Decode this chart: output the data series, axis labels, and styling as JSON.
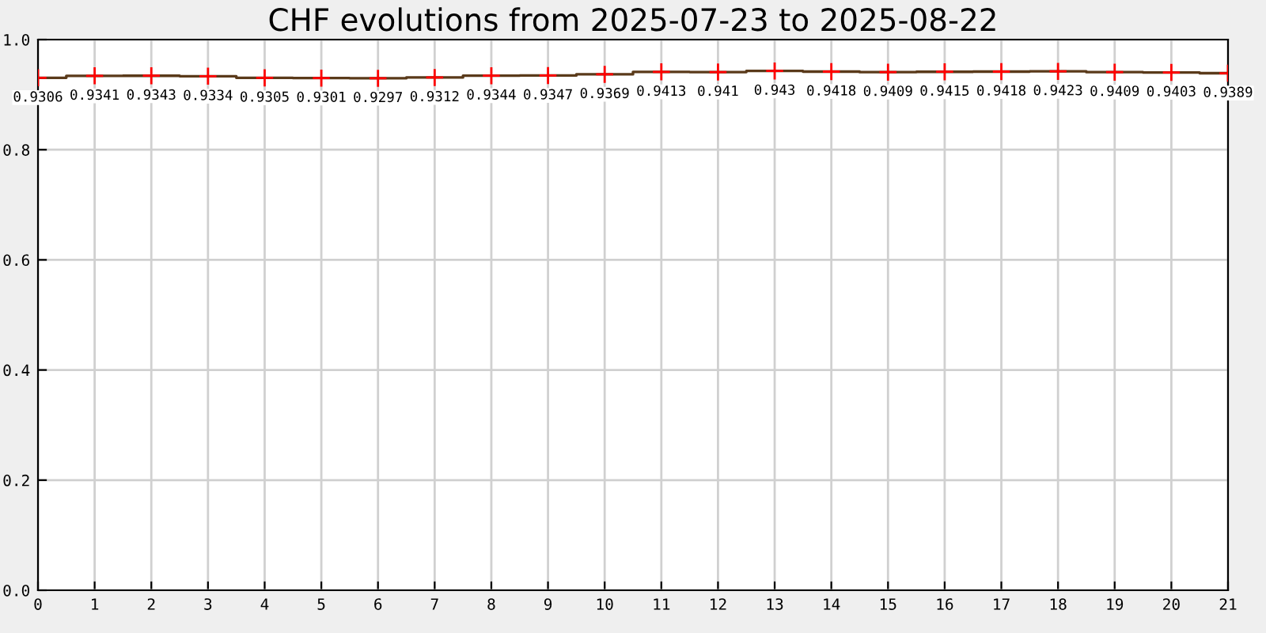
{
  "chart_data": {
    "type": "step",
    "title": "CHF evolutions from 2025-07-23 to 2025-08-22",
    "x": [
      0,
      1,
      2,
      3,
      4,
      5,
      6,
      7,
      8,
      9,
      10,
      11,
      12,
      13,
      14,
      15,
      16,
      17,
      18,
      19,
      20,
      21
    ],
    "series": [
      {
        "color": "#5a3a1a",
        "colors": [
          "#ff0000",
          "#ff0000",
          "#ff0000",
          "#ff0000",
          "#ff0000",
          "#ff0000",
          "#ff0000",
          "#ff0000",
          "#ff0000",
          "#ff0000",
          "#ff0000",
          "#ff0000",
          "#ff0000",
          "#ff0000",
          "#ff0000",
          "#ff0000",
          "#ff0000",
          "#ff0000",
          "#ff0000",
          "#ff0000",
          "#ff0000",
          "#ff0000"
        ],
        "values": [
          0.9306,
          0.9341,
          0.9343,
          0.9334,
          0.9305,
          0.9301,
          0.9297,
          0.9312,
          0.9344,
          0.9347,
          0.9369,
          0.9413,
          0.941,
          0.943,
          0.9418,
          0.9409,
          0.9415,
          0.9418,
          0.9423,
          0.9409,
          0.9403,
          0.9389
        ]
      }
    ],
    "xlim": [
      0,
      21
    ],
    "xticks": [
      0,
      1,
      2,
      3,
      4,
      5,
      6,
      7,
      8,
      9,
      10,
      11,
      12,
      13,
      14,
      15,
      16,
      17,
      18,
      19,
      20,
      21
    ],
    "ylim": [
      0,
      1
    ],
    "yticks": [
      {
        "value": 0,
        "label": "0.0"
      },
      {
        "value": 0.2,
        "label": "0.2"
      },
      {
        "value": 0.4,
        "label": "0.4"
      },
      {
        "value": 0.6,
        "label": "0.6"
      },
      {
        "value": 0.8,
        "label": "0.8"
      },
      {
        "value": 1,
        "label": "1.0"
      }
    ],
    "grid": true,
    "marker": "cross",
    "data_labels": true
  }
}
